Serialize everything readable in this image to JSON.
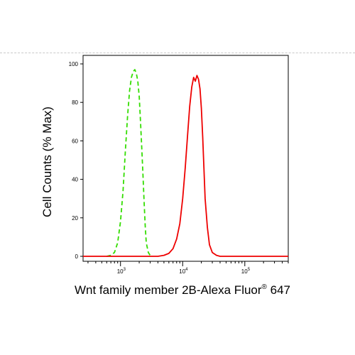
{
  "chart_data": {
    "type": "line",
    "title": "",
    "xlabel": "Wnt family member 2B-Alexa Fluor",
    "xlabel_superscript": "®",
    "xlabel_suffix": " 647",
    "ylabel": "Cell Counts (% Max)",
    "xscale": "log",
    "xlim": [
      250,
      500000
    ],
    "ylim": [
      0,
      100
    ],
    "xticks": [
      {
        "mantissa": "10",
        "exponent": "3",
        "value": 1000
      },
      {
        "mantissa": "10",
        "exponent": "4",
        "value": 10000
      },
      {
        "mantissa": "10",
        "exponent": "5",
        "value": 100000
      }
    ],
    "yticks": [
      0,
      20,
      40,
      60,
      80,
      100
    ],
    "grid": false,
    "legend": "none",
    "series": [
      {
        "color": "#33dd00",
        "style": "dashed",
        "points": [
          [
            600,
            0
          ],
          [
            700,
            0.5
          ],
          [
            800,
            2
          ],
          [
            900,
            7
          ],
          [
            1000,
            18
          ],
          [
            1100,
            34
          ],
          [
            1200,
            55
          ],
          [
            1300,
            73
          ],
          [
            1400,
            86
          ],
          [
            1500,
            93
          ],
          [
            1600,
            96
          ],
          [
            1700,
            97
          ],
          [
            1800,
            95
          ],
          [
            1900,
            91
          ],
          [
            2000,
            83
          ],
          [
            2100,
            70
          ],
          [
            2200,
            56
          ],
          [
            2300,
            42
          ],
          [
            2400,
            28
          ],
          [
            2500,
            16
          ],
          [
            2600,
            7
          ],
          [
            2800,
            2
          ],
          [
            3000,
            0.5
          ],
          [
            3300,
            0
          ]
        ]
      },
      {
        "color": "#ee0000",
        "style": "solid",
        "points": [
          [
            250,
            0
          ],
          [
            4000,
            0
          ],
          [
            5000,
            0.5
          ],
          [
            6000,
            1.5
          ],
          [
            7000,
            4
          ],
          [
            8000,
            9
          ],
          [
            9000,
            17
          ],
          [
            10000,
            30
          ],
          [
            11000,
            46
          ],
          [
            12000,
            63
          ],
          [
            13000,
            78
          ],
          [
            14000,
            88
          ],
          [
            15000,
            93
          ],
          [
            16000,
            91
          ],
          [
            17000,
            94
          ],
          [
            18000,
            92
          ],
          [
            19000,
            87
          ],
          [
            20000,
            77
          ],
          [
            21000,
            62
          ],
          [
            22000,
            46
          ],
          [
            23000,
            30
          ],
          [
            25000,
            15
          ],
          [
            27000,
            6
          ],
          [
            30000,
            2
          ],
          [
            35000,
            0.5
          ],
          [
            40000,
            0
          ],
          [
            500000,
            0
          ]
        ]
      }
    ]
  }
}
